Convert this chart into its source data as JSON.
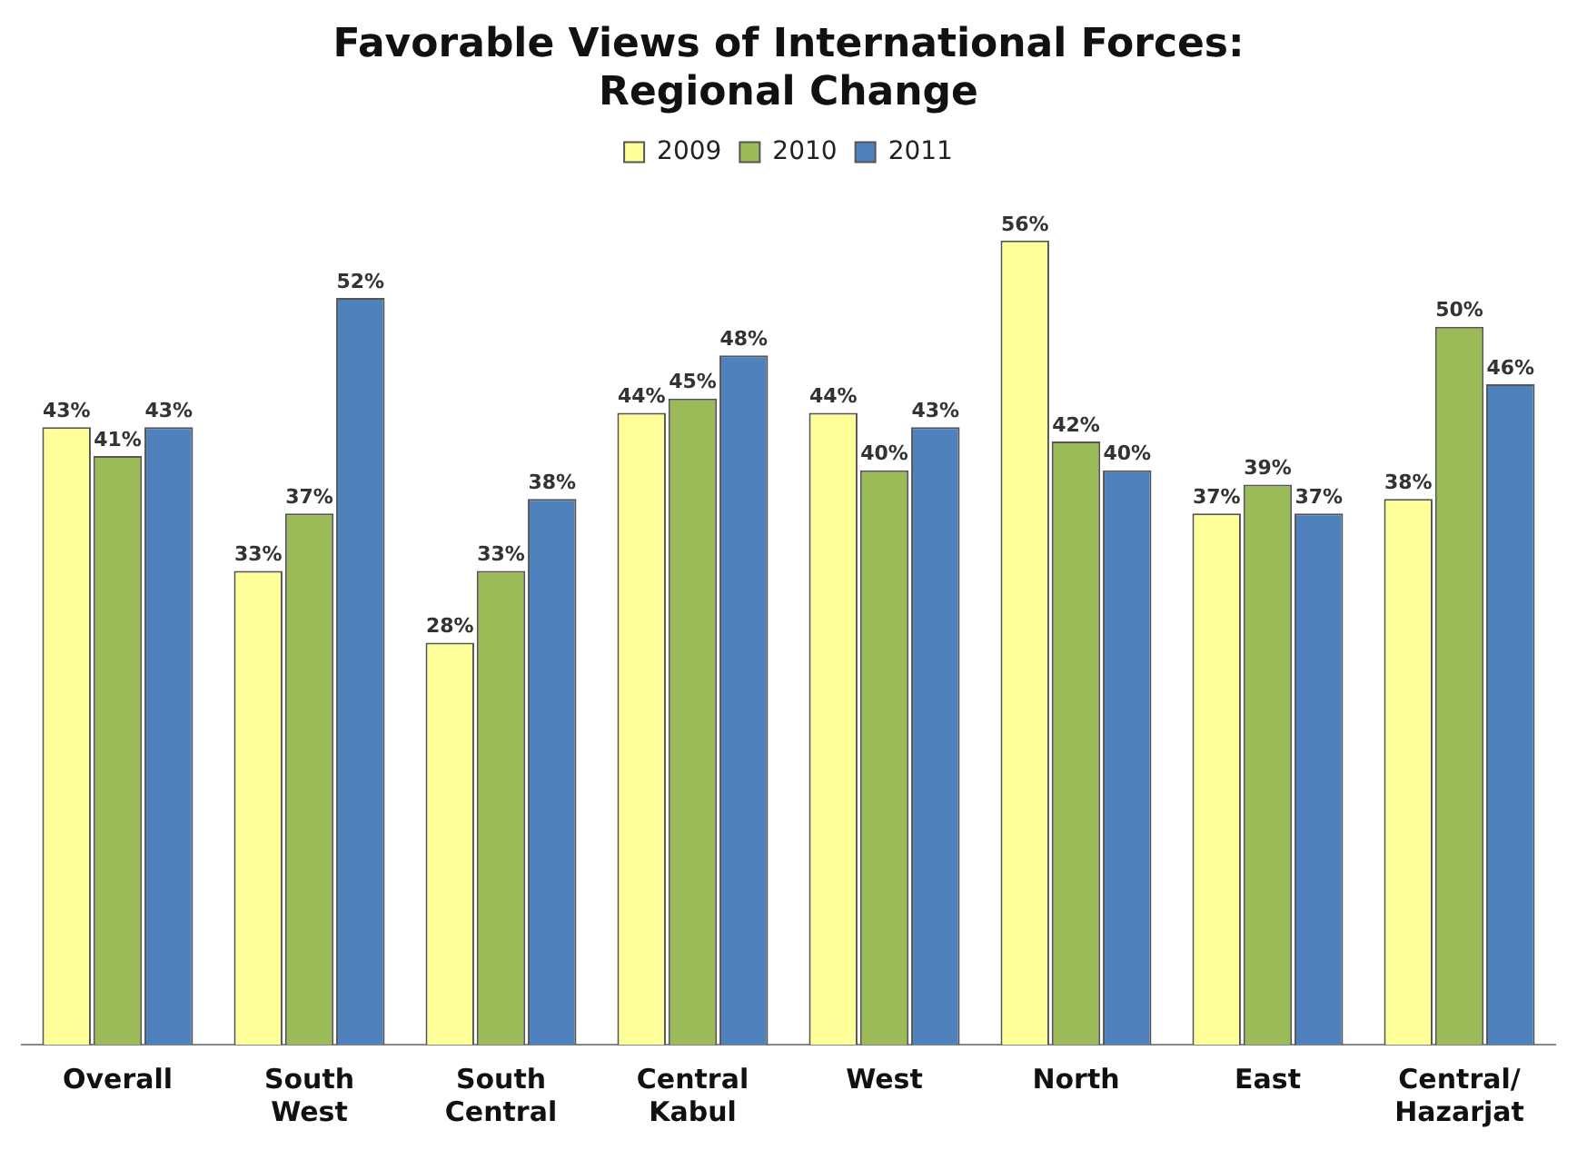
{
  "chart_data": {
    "type": "bar",
    "title": "Favorable Views of International Forces: Regional Change",
    "categories": [
      "Overall",
      "South West",
      "South Central",
      "Central Kabul",
      "West",
      "North",
      "East",
      "Central/Hazarjat"
    ],
    "series": [
      {
        "name": "2009",
        "color": "#ffff99",
        "values": [
          43,
          33,
          28,
          44,
          44,
          56,
          37,
          38
        ],
        "value_labels": [
          "43%",
          "33%",
          "28%",
          "44%",
          "44%",
          "56%",
          "37%",
          "38%"
        ]
      },
      {
        "name": "2010",
        "color": "#9bbb59",
        "values": [
          41,
          37,
          33,
          45,
          40,
          42,
          39,
          50
        ],
        "value_labels": [
          "41%",
          "37%",
          "33%",
          "45%",
          "40%",
          "42%",
          "39%",
          "50%"
        ]
      },
      {
        "name": "2011",
        "color": "#4f81bd",
        "values": [
          43,
          52,
          38,
          48,
          43,
          40,
          37,
          46
        ],
        "value_labels": [
          "43%",
          "52%",
          "38%",
          "48%",
          "43%",
          "40%",
          "37%",
          "46%"
        ]
      }
    ],
    "legend": "top",
    "grid": false,
    "tick_labels": "x"
  }
}
